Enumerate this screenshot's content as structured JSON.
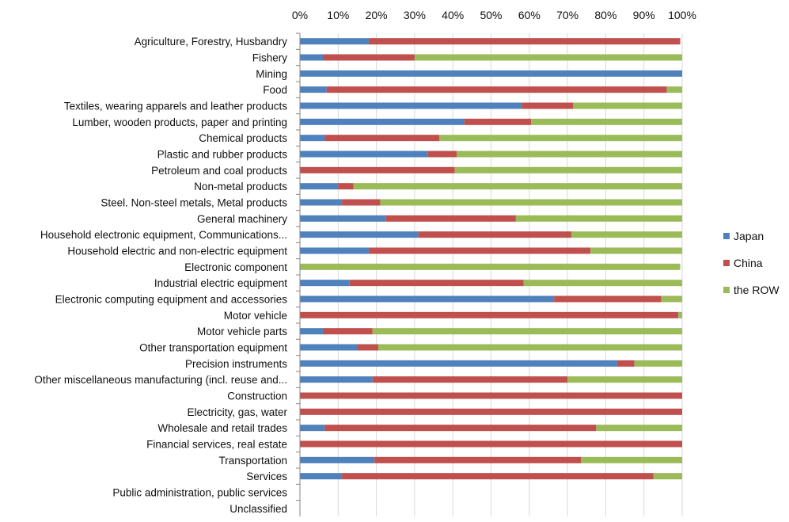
{
  "chart_data": {
    "type": "bar",
    "orientation": "horizontal",
    "stacked": true,
    "title": "",
    "xlabel": "",
    "ylabel": "",
    "xlim": [
      0,
      100
    ],
    "x_ticks": [
      "0%",
      "10%",
      "20%",
      "30%",
      "40%",
      "50%",
      "60%",
      "70%",
      "80%",
      "90%",
      "100%"
    ],
    "x_axis_position": "top",
    "grid": true,
    "legend_position": "right",
    "categories": [
      "Agriculture, Forestry, Husbandry",
      "Fishery",
      "Mining",
      "Food",
      "Textiles, wearing apparels and leather products",
      "Lumber, wooden products, paper and printing",
      "Chemical products",
      "Plastic and rubber products",
      "Petroleum and coal products",
      "Non-metal products",
      "Steel. Non-steel metals, Metal products",
      "General machinery",
      "Household electronic equipment, Communications...",
      "Household electric and non-electric equipment",
      "Electronic component",
      "Industrial electric equipment",
      "Electronic computing equipment and accessories",
      "Motor vehicle",
      "Motor vehicle parts",
      "Other transportation equipment",
      "Precision instruments",
      "Other miscellaneous manufacturing (incl. reuse and...",
      "Construction",
      "Electricity, gas, water",
      "Wholesale and retail trades",
      "Financial services, real estate",
      "Transportation",
      "Services",
      "Public administration, public services",
      "Unclassified"
    ],
    "series": [
      {
        "name": "Japan",
        "color": "#4f81bd",
        "values": [
          18,
          6,
          100,
          7,
          58,
          43,
          6.5,
          33.5,
          0,
          10,
          11,
          22.5,
          31,
          18,
          0,
          13,
          66.5,
          0,
          6,
          15,
          83,
          19,
          0,
          0,
          6.5,
          0,
          19.5,
          11,
          0,
          0
        ]
      },
      {
        "name": "China",
        "color": "#c0504d",
        "values": [
          81.5,
          24,
          0,
          89,
          13.5,
          17.5,
          30,
          7.5,
          40.5,
          4,
          10,
          34,
          40,
          58,
          0,
          45.5,
          28,
          99,
          13,
          5.5,
          4.5,
          51,
          100,
          100,
          71,
          100,
          54,
          81.5,
          0,
          0
        ]
      },
      {
        "name": "the ROW",
        "color": "#9bbb59",
        "values": [
          0,
          70,
          0,
          4,
          28.5,
          39.5,
          63.5,
          59,
          59.5,
          86,
          79,
          43.5,
          29,
          24,
          99.5,
          41.5,
          5.5,
          1,
          81,
          79.5,
          12.5,
          30,
          0,
          0,
          22.5,
          0,
          26.5,
          7.5,
          0,
          0
        ]
      }
    ]
  }
}
